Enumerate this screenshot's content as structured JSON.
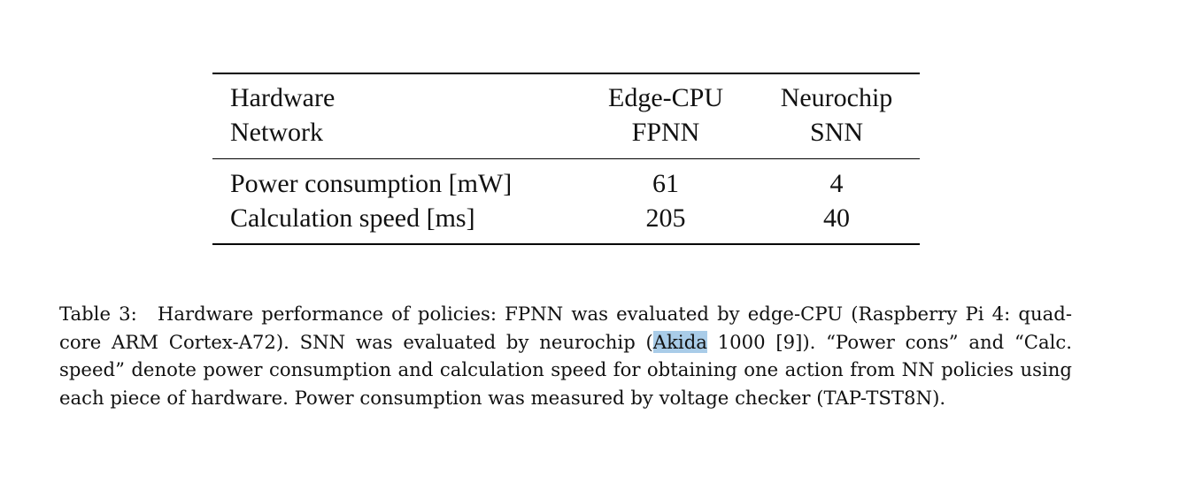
{
  "table": {
    "header": {
      "row1": {
        "label": "Hardware",
        "col1": "Edge-CPU",
        "col2": "Neurochip"
      },
      "row2": {
        "label": "Network",
        "col1": "FPNN",
        "col2": "SNN"
      }
    },
    "rows": [
      {
        "label": "Power consumption [mW]",
        "col1": "61",
        "col2": "4"
      },
      {
        "label": "Calculation speed [ms]",
        "col1": "205",
        "col2": "40"
      }
    ]
  },
  "caption": {
    "label": "Table 3:",
    "text_before_highlight": "Hardware performance of policies: FPNN was evaluated by edge-CPU (Raspberry Pi 4: quad-core ARM Cortex-A72). SNN was evaluated by neurochip (",
    "highlight": "Akida",
    "text_after_highlight": " 1000 [9]). “Power cons” and “Calc. speed” denote power consumption and calculation speed for obtaining one action from NN policies using each piece of hardware. Power consumption was measured by voltage checker (TAP-TST8N).",
    "highlight_color": "#a9cce8"
  }
}
